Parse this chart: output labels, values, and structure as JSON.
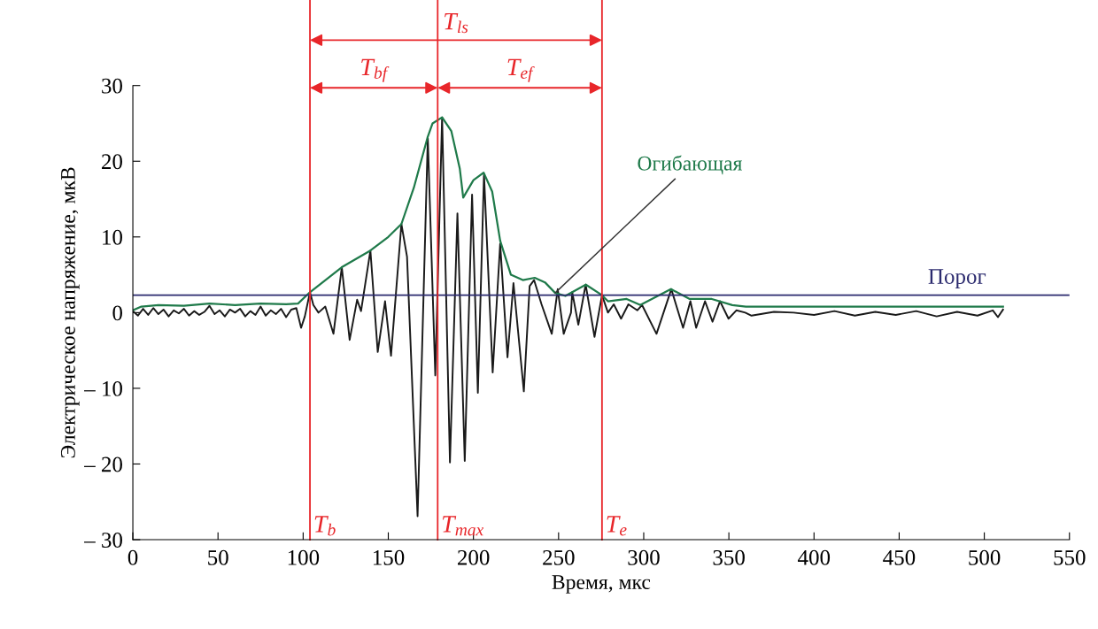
{
  "chart_data": {
    "type": "line",
    "xlabel": "Время, мкс",
    "ylabel": "Электрическое напряжение, мкВ",
    "xlim": [
      0,
      550
    ],
    "xticks": [
      0,
      50,
      100,
      150,
      200,
      250,
      300,
      350,
      400,
      450,
      500,
      550
    ],
    "ylim": [
      -30,
      30
    ],
    "yticks": [
      {
        "value": -30,
        "label": "– 30"
      },
      {
        "value": -20,
        "label": "– 20"
      },
      {
        "value": -10,
        "label": "– 10"
      },
      0,
      10,
      20,
      30
    ],
    "grid": false,
    "series": [
      {
        "color": "#1a1a1a",
        "x": [
          0,
          3,
          6,
          9,
          12,
          15,
          18,
          21,
          24,
          27,
          30,
          33,
          36,
          39,
          42,
          45,
          48,
          51,
          54,
          57,
          60,
          63,
          66,
          69,
          72,
          75,
          78,
          81,
          84,
          87,
          90,
          93,
          96,
          98.8,
          101,
          104,
          106,
          109,
          113,
          117.8,
          122.7,
          127.3,
          131.7,
          134,
          139.5,
          143.8,
          148.1,
          151.6,
          157.7,
          161,
          167.2,
          173.2,
          177.6,
          181.6,
          186.2,
          190.6,
          194.9,
          199.2,
          202.6,
          206.2,
          211.3,
          215.7,
          220,
          223.5,
          229.6,
          233,
          235.6,
          240,
          246,
          249.5,
          253,
          257.3,
          258,
          261.6,
          265.9,
          271.1,
          275.5,
          279,
          282.4,
          286.7,
          291,
          296.2,
          299,
          307.5,
          316.2,
          323.1,
          327.4,
          330.8,
          336,
          340.4,
          344.8,
          349.8,
          354.4,
          359.6,
          363.3,
          376.5,
          388,
          400,
          412,
          424,
          436,
          448,
          460,
          472,
          484,
          496,
          505,
          508,
          511
        ],
        "values": [
          0.2,
          -0.4,
          0.5,
          -0.3,
          0.6,
          -0.2,
          0.4,
          -0.5,
          0.3,
          -0.1,
          0.5,
          -0.4,
          0.2,
          -0.3,
          0.1,
          0.9,
          -0.2,
          0.3,
          -0.5,
          0.4,
          0,
          0.5,
          -0.5,
          0.2,
          -0.3,
          0.8,
          -0.4,
          0.3,
          -0.2,
          0.5,
          -0.6,
          0.4,
          0.6,
          -2.0,
          -0.5,
          2.7,
          1.0,
          0,
          0.8,
          -2.8,
          6.0,
          -3.6,
          1.7,
          0.2,
          8.2,
          -5.2,
          1.5,
          -5.7,
          11.7,
          7.4,
          -26.9,
          23.1,
          -8.3,
          25.8,
          -19.8,
          13.1,
          -19.6,
          15.6,
          -10.6,
          18.3,
          -7.9,
          9.1,
          -5.9,
          3.9,
          -10.4,
          3.5,
          4.3,
          1.1,
          -2.8,
          3.1,
          -2.8,
          0,
          2.7,
          -1.6,
          3.7,
          -3.2,
          2.3,
          0,
          1.1,
          -0.8,
          1.1,
          0.3,
          1.0,
          -2.8,
          3.1,
          -2.0,
          1.5,
          -2.0,
          1.5,
          -1.2,
          1.5,
          -0.8,
          0.3,
          0,
          -0.4,
          0.1,
          0,
          -0.3,
          0.2,
          -0.4,
          0.1,
          -0.3,
          0.2,
          -0.5,
          0.1,
          -0.4,
          0.3,
          -0.6,
          0.4
        ]
      },
      {
        "name": "Огибающая",
        "color": "#1f7a4a",
        "x": [
          0,
          5,
          15,
          30,
          45,
          60,
          75,
          90,
          97,
          104,
          122.7,
          139.5,
          150,
          157.7,
          165,
          173,
          176,
          181.6,
          187,
          192,
          194,
          200,
          206,
          211,
          215.7,
          222,
          229,
          236,
          242,
          248,
          254,
          266,
          275.5,
          279,
          290,
          298,
          316,
          327,
          340,
          352,
          360,
          400,
          511
        ],
        "values": [
          0.3,
          0.8,
          1.0,
          0.9,
          1.2,
          1.0,
          1.2,
          1.1,
          1.2,
          2.7,
          6.0,
          8.2,
          10.0,
          11.7,
          16.5,
          23.1,
          25.0,
          25.8,
          24.0,
          19.0,
          15.2,
          17.5,
          18.5,
          16.0,
          9.5,
          5.0,
          4.3,
          4.6,
          4.0,
          2.6,
          2.2,
          3.7,
          2.3,
          1.5,
          1.8,
          1.0,
          3.1,
          1.8,
          1.8,
          1.0,
          0.8,
          0.8,
          0.8
        ]
      }
    ],
    "ref_lines": [
      {
        "axis": "y",
        "value": 2.3,
        "label": "Порог",
        "color": "#2b2a6e"
      },
      {
        "axis": "x",
        "value": 104,
        "label": "T$_{b}$",
        "color": "#e8262a"
      },
      {
        "axis": "x",
        "value": 179,
        "label": "T$_{max}$",
        "color": "#e8262a"
      },
      {
        "axis": "x",
        "value": 275.5,
        "label": "T$_{e}$",
        "color": "#e8262a"
      }
    ],
    "annotations": [
      "T$_{ls}$",
      "T$_{bf}$",
      "T$_{ef}$"
    ]
  }
}
